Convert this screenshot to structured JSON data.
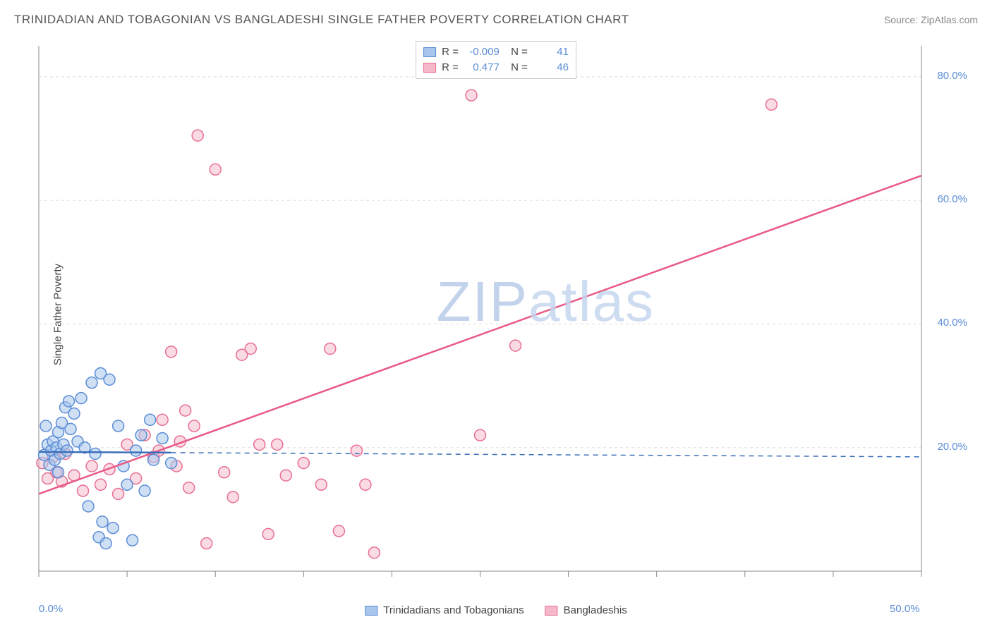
{
  "header": {
    "title": "TRINIDADIAN AND TOBAGONIAN VS BANGLADESHI SINGLE FATHER POVERTY CORRELATION CHART",
    "source": "Source: ZipAtlas.com"
  },
  "ylabel": "Single Father Poverty",
  "watermark": {
    "part1": "ZIP",
    "part2": "atlas"
  },
  "chart": {
    "type": "scatter",
    "background_color": "#ffffff",
    "grid_color": "#dddddd",
    "axis_color": "#888888",
    "tick_color": "#888888",
    "label_color": "#5b8dd6",
    "xlim": [
      0,
      50
    ],
    "ylim": [
      0,
      85
    ],
    "x_ticks": [
      0,
      5,
      10,
      15,
      20,
      25,
      30,
      35,
      40,
      45,
      50
    ],
    "x_tick_labels": {
      "0": "0.0%",
      "50": "50.0%"
    },
    "y_gridlines": [
      20,
      40,
      60,
      80
    ],
    "y_tick_labels": {
      "20": "20.0%",
      "40": "40.0%",
      "60": "60.0%",
      "80": "80.0%"
    },
    "marker_radius": 8,
    "marker_stroke_width": 1.5,
    "series": [
      {
        "name": "Trinidadians and Tobagonians",
        "fill": "#a8c6ec",
        "stroke": "#5b8dd6",
        "fill_opacity": 0.55,
        "R": "-0.009",
        "N": "41",
        "trendline": {
          "color": "#3a6fb7",
          "width": 2.5,
          "solid_end_x": 7.5,
          "y_start": 19.3,
          "y_end": 18.5,
          "dash": "7,6"
        },
        "points": [
          [
            0.3,
            18.8
          ],
          [
            0.5,
            20.5
          ],
          [
            0.6,
            17.2
          ],
          [
            0.7,
            19.5
          ],
          [
            0.8,
            21.0
          ],
          [
            0.9,
            18.0
          ],
          [
            1.0,
            20.0
          ],
          [
            1.1,
            22.5
          ],
          [
            1.2,
            19.0
          ],
          [
            1.3,
            24.0
          ],
          [
            1.4,
            20.5
          ],
          [
            1.5,
            26.5
          ],
          [
            1.6,
            19.5
          ],
          [
            1.7,
            27.5
          ],
          [
            1.8,
            23.0
          ],
          [
            2.0,
            25.5
          ],
          [
            2.2,
            21.0
          ],
          [
            2.4,
            28.0
          ],
          [
            2.6,
            20.0
          ],
          [
            2.8,
            10.5
          ],
          [
            3.0,
            30.5
          ],
          [
            3.2,
            19.0
          ],
          [
            3.4,
            5.5
          ],
          [
            3.5,
            32.0
          ],
          [
            3.6,
            8.0
          ],
          [
            3.8,
            4.5
          ],
          [
            4.0,
            31.0
          ],
          [
            4.2,
            7.0
          ],
          [
            4.5,
            23.5
          ],
          [
            4.8,
            17.0
          ],
          [
            5.0,
            14.0
          ],
          [
            5.3,
            5.0
          ],
          [
            5.5,
            19.5
          ],
          [
            5.8,
            22.0
          ],
          [
            6.0,
            13.0
          ],
          [
            6.3,
            24.5
          ],
          [
            6.5,
            18.0
          ],
          [
            7.0,
            21.5
          ],
          [
            7.5,
            17.5
          ],
          [
            0.4,
            23.5
          ],
          [
            1.1,
            16.0
          ]
        ]
      },
      {
        "name": "Bangladeshis",
        "fill": "#f5b8c9",
        "stroke": "#e86f92",
        "fill_opacity": 0.5,
        "R": "0.477",
        "N": "46",
        "trendline": {
          "color": "#e85a85",
          "width": 2.5,
          "y_start": 12.5,
          "y_end": 64.0
        },
        "points": [
          [
            0.2,
            17.5
          ],
          [
            0.5,
            15.0
          ],
          [
            0.8,
            18.5
          ],
          [
            1.0,
            16.0
          ],
          [
            1.3,
            14.5
          ],
          [
            1.5,
            19.0
          ],
          [
            2.0,
            15.5
          ],
          [
            2.5,
            13.0
          ],
          [
            3.0,
            17.0
          ],
          [
            3.5,
            14.0
          ],
          [
            4.0,
            16.5
          ],
          [
            4.5,
            12.5
          ],
          [
            5.0,
            20.5
          ],
          [
            5.5,
            15.0
          ],
          [
            6.0,
            22.0
          ],
          [
            6.5,
            18.5
          ],
          [
            7.0,
            24.5
          ],
          [
            7.5,
            35.5
          ],
          [
            8.0,
            21.0
          ],
          [
            8.3,
            26.0
          ],
          [
            8.5,
            13.5
          ],
          [
            9.0,
            70.5
          ],
          [
            9.5,
            4.5
          ],
          [
            10.0,
            65.0
          ],
          [
            10.5,
            16.0
          ],
          [
            11.0,
            12.0
          ],
          [
            12.0,
            36.0
          ],
          [
            12.5,
            20.5
          ],
          [
            13.0,
            6.0
          ],
          [
            14.0,
            15.5
          ],
          [
            15.0,
            17.5
          ],
          [
            16.0,
            14.0
          ],
          [
            16.5,
            36.0
          ],
          [
            17.0,
            6.5
          ],
          [
            18.0,
            19.5
          ],
          [
            18.5,
            14.0
          ],
          [
            19.0,
            3.0
          ],
          [
            24.5,
            77.0
          ],
          [
            25.0,
            22.0
          ],
          [
            27.0,
            36.5
          ],
          [
            41.5,
            75.5
          ],
          [
            6.8,
            19.5
          ],
          [
            7.8,
            17.0
          ],
          [
            8.8,
            23.5
          ],
          [
            11.5,
            35.0
          ],
          [
            13.5,
            20.5
          ]
        ]
      }
    ]
  },
  "legend": {
    "items": [
      {
        "label": "Trinidadians and Tobagonians",
        "fill": "#a8c6ec",
        "stroke": "#5b8dd6"
      },
      {
        "label": "Bangladeshis",
        "fill": "#f5b8c9",
        "stroke": "#e86f92"
      }
    ]
  }
}
